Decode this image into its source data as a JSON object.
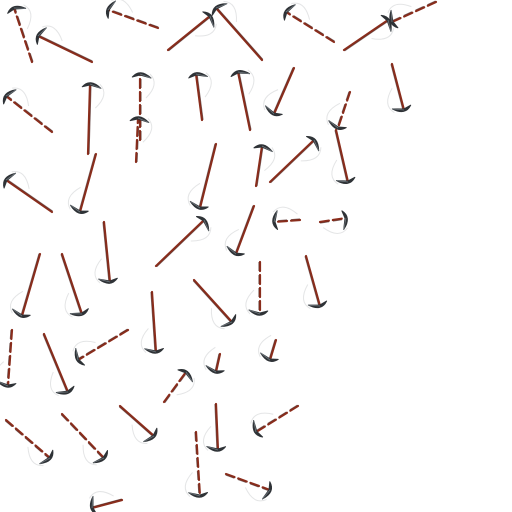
{
  "sprite_sheet": {
    "subject": "pickaxe",
    "background_color": "#ffffff",
    "colors": {
      "handle": "#8a2d1c",
      "handle_dark": "#3a1410",
      "metal": "#2f3337",
      "metal_light": "#6e767c",
      "trail": "#d8dadc"
    }
  }
}
